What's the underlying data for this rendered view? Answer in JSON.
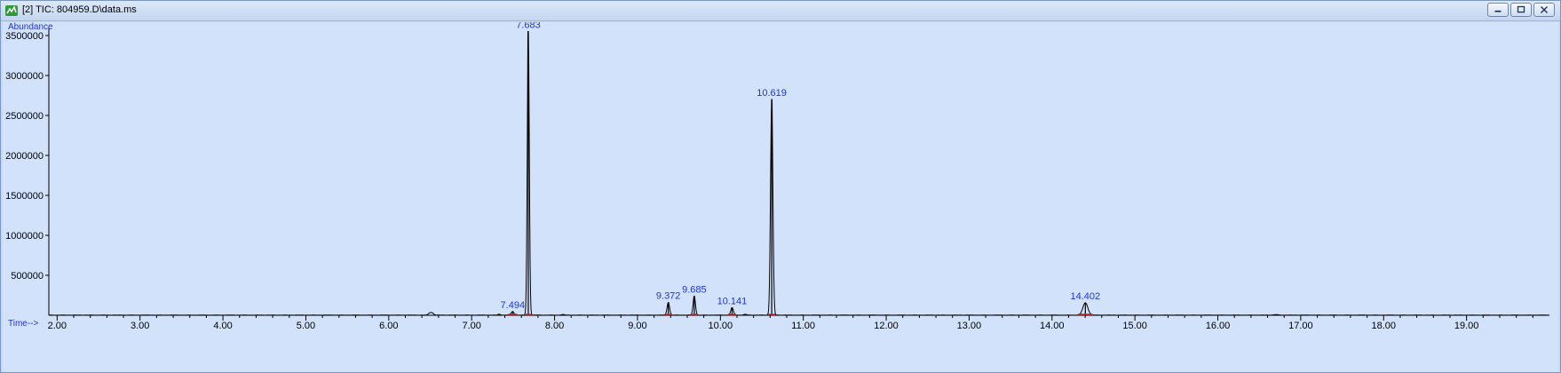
{
  "window": {
    "title": "[2] TIC: 804959.D\\data.ms",
    "icon": "chromatogram-app-icon",
    "buttons": [
      "minimize-icon",
      "restore-icon",
      "close-icon"
    ]
  },
  "chart_data": {
    "type": "line",
    "ylabel": "Abundance",
    "xlabel": "Time-->",
    "xlim": [
      1.9,
      20.0
    ],
    "ylim": [
      0,
      3600000
    ],
    "x_ticks": [
      "2.00",
      "3.00",
      "4.00",
      "5.00",
      "6.00",
      "7.00",
      "8.00",
      "9.00",
      "10.00",
      "11.00",
      "12.00",
      "13.00",
      "14.00",
      "15.00",
      "16.00",
      "17.00",
      "18.00",
      "19.00"
    ],
    "y_ticks": [
      "500000",
      "1000000",
      "1500000",
      "2000000",
      "2500000",
      "3000000",
      "3500000"
    ],
    "peaks": [
      {
        "label": "7.494",
        "rt": 7.494,
        "height": 45000,
        "width": 0.018
      },
      {
        "label": "7.683",
        "rt": 7.683,
        "height": 3550000,
        "width": 0.012
      },
      {
        "label": "9.372",
        "rt": 9.372,
        "height": 160000,
        "width": 0.015
      },
      {
        "label": "9.685",
        "rt": 9.685,
        "height": 240000,
        "width": 0.014
      },
      {
        "label": "10.141",
        "rt": 10.141,
        "height": 95000,
        "width": 0.016
      },
      {
        "label": "10.619",
        "rt": 10.619,
        "height": 2700000,
        "width": 0.014
      },
      {
        "label": "14.402",
        "rt": 14.402,
        "height": 155000,
        "width": 0.03
      }
    ],
    "minor_peaks": [
      {
        "rt": 6.5,
        "height": 30000,
        "width": 0.02
      },
      {
        "rt": 6.53,
        "height": 18000,
        "width": 0.015
      },
      {
        "rt": 7.33,
        "height": 12000,
        "width": 0.015
      },
      {
        "rt": 8.1,
        "height": 8000,
        "width": 0.02
      },
      {
        "rt": 10.3,
        "height": 10000,
        "width": 0.02
      },
      {
        "rt": 16.7,
        "height": 6000,
        "width": 0.03
      }
    ],
    "line_color": "#000000",
    "label_color": "#1f36c9",
    "integration_mark_color": "#d22a2a",
    "background_color": "#d3e2fb"
  }
}
